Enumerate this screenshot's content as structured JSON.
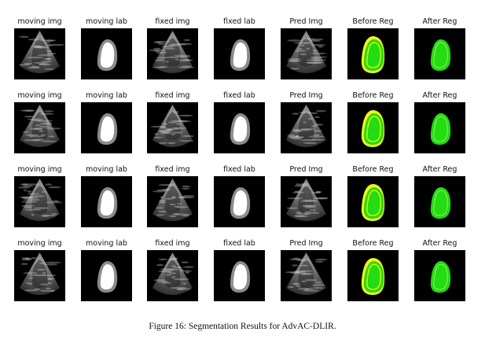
{
  "figure": {
    "columns": [
      "moving img",
      "moving lab",
      "fixed img",
      "fixed lab",
      "Pred Img",
      "Before Reg",
      "After Reg"
    ],
    "rows": 4,
    "caption": "Figure 16: Segmentation Results for AdvAC-DLIR."
  },
  "colors": {
    "background": "#000000",
    "label_gray": "#8c8c8c",
    "label_white": "#ffffff",
    "overlay_green": "#22dd11",
    "overlay_yellow": "#f2f21a"
  }
}
